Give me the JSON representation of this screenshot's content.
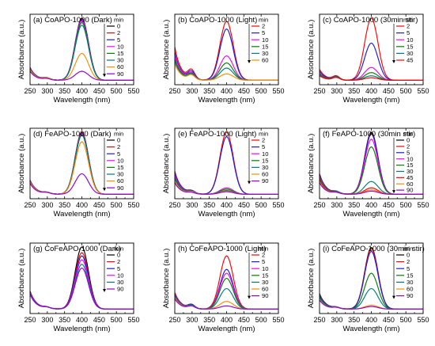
{
  "colors": {
    "0": "#000000",
    "2": "#ff0000",
    "5": "#1c1cdc",
    "10": "#ff00ff",
    "15": "#008000",
    "30": "#007c80",
    "45": "#ff0000",
    "60": "#ff8c00",
    "90": "#9400d3"
  },
  "chart_data": [
    {
      "type": "line",
      "title": "(a) CoAPO-1000 (Dark)",
      "xlabel": "Wavelength (nm)",
      "ylabel": "Absorbance (a.u.)",
      "xlim": [
        250,
        550
      ],
      "xticks": [
        250,
        300,
        350,
        400,
        450,
        500,
        550
      ],
      "legend_title": "min",
      "series": [
        {
          "name": "0",
          "peak": 0.97,
          "bump": 0.03,
          "edge": 0.2
        },
        {
          "name": "2",
          "peak": 0.96,
          "bump": 0.03,
          "edge": 0.2
        },
        {
          "name": "5",
          "peak": 0.95,
          "bump": 0.03,
          "edge": 0.19
        },
        {
          "name": "10",
          "peak": 0.93,
          "bump": 0.03,
          "edge": 0.19
        },
        {
          "name": "15",
          "peak": 0.9,
          "bump": 0.03,
          "edge": 0.18
        },
        {
          "name": "30",
          "peak": 0.86,
          "bump": 0.03,
          "edge": 0.17
        },
        {
          "name": "60",
          "peak": 0.42,
          "bump": 0.03,
          "edge": 0.16
        },
        {
          "name": "90",
          "peak": 0.14,
          "bump": 0.02,
          "edge": 0.14
        }
      ]
    },
    {
      "type": "line",
      "title": "(b) CoAPO-1000 (Light)",
      "xlabel": "Wavelength (nm)",
      "ylabel": "Absorbance (a.u.)",
      "xlim": [
        250,
        550
      ],
      "xticks": [
        250,
        300,
        350,
        400,
        450,
        500,
        550
      ],
      "legend_title": "min",
      "series": [
        {
          "name": "2",
          "peak": 0.92,
          "bump": 0.14,
          "edge": 0.52
        },
        {
          "name": "5",
          "peak": 0.8,
          "bump": 0.12,
          "edge": 0.44
        },
        {
          "name": "10",
          "peak": 0.38,
          "bump": 0.1,
          "edge": 0.4
        },
        {
          "name": "15",
          "peak": 0.27,
          "bump": 0.09,
          "edge": 0.34
        },
        {
          "name": "30",
          "peak": 0.19,
          "bump": 0.08,
          "edge": 0.3
        },
        {
          "name": "60",
          "peak": 0.1,
          "bump": 0.07,
          "edge": 0.26
        }
      ]
    },
    {
      "type": "line",
      "title": "(c) CoAPO-1000 (30min stir)",
      "xlabel": "Wavelength (nm)",
      "ylabel": "Absorbance (a.u.)",
      "xlim": [
        250,
        550
      ],
      "xticks": [
        250,
        300,
        350,
        400,
        450,
        500,
        550
      ],
      "legend_title": "min",
      "series": [
        {
          "name": "2",
          "peak": 0.97,
          "bump": 0.06,
          "edge": 0.17
        },
        {
          "name": "5",
          "peak": 0.58,
          "bump": 0.05,
          "edge": 0.14
        },
        {
          "name": "10",
          "peak": 0.2,
          "bump": 0.05,
          "edge": 0.11
        },
        {
          "name": "15",
          "peak": 0.12,
          "bump": 0.05,
          "edge": 0.1
        },
        {
          "name": "30",
          "peak": 0.07,
          "bump": 0.05,
          "edge": 0.08
        },
        {
          "name": "45",
          "peak": 0.04,
          "bump": 0.04,
          "edge": 0.07
        }
      ]
    },
    {
      "type": "line",
      "title": "(d) FeAPO-1000 (Dark)",
      "xlabel": "Wavelength (nm)",
      "ylabel": "Absorbance (a.u.)",
      "xlim": [
        250,
        550
      ],
      "xticks": [
        250,
        300,
        350,
        400,
        450,
        500,
        550
      ],
      "legend_title": "min",
      "series": [
        {
          "name": "0",
          "peak": 0.97,
          "bump": 0.02,
          "edge": 0.22
        },
        {
          "name": "2",
          "peak": 0.96,
          "bump": 0.02,
          "edge": 0.22
        },
        {
          "name": "5",
          "peak": 0.95,
          "bump": 0.02,
          "edge": 0.21
        },
        {
          "name": "10",
          "peak": 0.94,
          "bump": 0.02,
          "edge": 0.21
        },
        {
          "name": "15",
          "peak": 0.93,
          "bump": 0.02,
          "edge": 0.2
        },
        {
          "name": "30",
          "peak": 0.92,
          "bump": 0.02,
          "edge": 0.2
        },
        {
          "name": "60",
          "peak": 0.82,
          "bump": 0.02,
          "edge": 0.19
        },
        {
          "name": "90",
          "peak": 0.32,
          "bump": 0.02,
          "edge": 0.17
        }
      ]
    },
    {
      "type": "line",
      "title": "(e) FeAPO-1000 (Light)",
      "xlabel": "Wavelength (nm)",
      "ylabel": "Absorbance (a.u.)",
      "xlim": [
        250,
        550
      ],
      "xticks": [
        250,
        300,
        350,
        400,
        450,
        500,
        550
      ],
      "legend_title": "min",
      "series": [
        {
          "name": "2",
          "peak": 0.97,
          "bump": 0.04,
          "edge": 0.36
        },
        {
          "name": "5",
          "peak": 0.9,
          "bump": 0.04,
          "edge": 0.34
        },
        {
          "name": "10",
          "peak": 0.1,
          "bump": 0.03,
          "edge": 0.3
        },
        {
          "name": "15",
          "peak": 0.08,
          "bump": 0.03,
          "edge": 0.27
        },
        {
          "name": "30",
          "peak": 0.06,
          "bump": 0.03,
          "edge": 0.24
        },
        {
          "name": "60",
          "peak": 0.05,
          "bump": 0.03,
          "edge": 0.21
        },
        {
          "name": "90",
          "peak": 0.04,
          "bump": 0.02,
          "edge": 0.18
        }
      ]
    },
    {
      "type": "line",
      "title": "(f) FeAPO-1000 (30min stir)",
      "xlabel": "Wavelength (nm)",
      "ylabel": "Absorbance (a.u.)",
      "xlim": [
        250,
        550
      ],
      "xticks": [
        250,
        300,
        350,
        400,
        450,
        500,
        550
      ],
      "legend_title": "min",
      "series": [
        {
          "name": "0",
          "peak": 0.97,
          "bump": 0.03,
          "edge": 0.32
        },
        {
          "name": "2",
          "peak": 0.95,
          "bump": 0.03,
          "edge": 0.3
        },
        {
          "name": "5",
          "peak": 0.94,
          "bump": 0.03,
          "edge": 0.29
        },
        {
          "name": "10",
          "peak": 0.86,
          "bump": 0.03,
          "edge": 0.28
        },
        {
          "name": "15",
          "peak": 0.74,
          "bump": 0.03,
          "edge": 0.26
        },
        {
          "name": "30",
          "peak": 0.2,
          "bump": 0.03,
          "edge": 0.24
        },
        {
          "name": "45",
          "peak": 0.1,
          "bump": 0.02,
          "edge": 0.22
        },
        {
          "name": "60",
          "peak": 0.07,
          "bump": 0.02,
          "edge": 0.2
        },
        {
          "name": "90",
          "peak": 0.05,
          "bump": 0.02,
          "edge": 0.18
        }
      ]
    },
    {
      "type": "line",
      "title": "(g) CoFeAPO-1000 (Dark)",
      "xlabel": "Wavelength (nm)",
      "ylabel": "Absorbance (a.u.)",
      "xlim": [
        250,
        550
      ],
      "xticks": [
        250,
        300,
        350,
        400,
        450,
        500,
        550
      ],
      "legend_title": "min",
      "series": [
        {
          "name": "0",
          "peak": 0.97,
          "bump": 0.02,
          "edge": 0.28
        },
        {
          "name": "2",
          "peak": 0.88,
          "bump": 0.02,
          "edge": 0.27
        },
        {
          "name": "5",
          "peak": 0.83,
          "bump": 0.02,
          "edge": 0.26
        },
        {
          "name": "10",
          "peak": 0.77,
          "bump": 0.02,
          "edge": 0.25
        },
        {
          "name": "30",
          "peak": 0.7,
          "bump": 0.02,
          "edge": 0.24
        },
        {
          "name": "90",
          "peak": 0.64,
          "bump": 0.02,
          "edge": 0.23
        }
      ]
    },
    {
      "type": "line",
      "title": "(h) CoFeAPO-1000 (Light)",
      "xlabel": "Wavelength (nm)",
      "ylabel": "Absorbance (a.u.)",
      "xlim": [
        250,
        550
      ],
      "xticks": [
        250,
        300,
        350,
        400,
        450,
        500,
        550
      ],
      "legend_title": "min",
      "series": [
        {
          "name": "2",
          "peak": 0.83,
          "bump": 0.06,
          "edge": 0.26
        },
        {
          "name": "5",
          "peak": 0.62,
          "bump": 0.06,
          "edge": 0.24
        },
        {
          "name": "10",
          "peak": 0.56,
          "bump": 0.05,
          "edge": 0.22
        },
        {
          "name": "15",
          "peak": 0.48,
          "bump": 0.05,
          "edge": 0.21
        },
        {
          "name": "30",
          "peak": 0.32,
          "bump": 0.05,
          "edge": 0.2
        },
        {
          "name": "60",
          "peak": 0.12,
          "bump": 0.04,
          "edge": 0.18
        },
        {
          "name": "90",
          "peak": 0.05,
          "bump": 0.04,
          "edge": 0.16
        }
      ]
    },
    {
      "type": "line",
      "title": "(i) CoFeAPO-1000 (30min stir)",
      "xlabel": "Wavelength (nm)",
      "ylabel": "Absorbance (a.u.)",
      "xlim": [
        250,
        550
      ],
      "xticks": [
        250,
        300,
        350,
        400,
        450,
        500,
        550
      ],
      "legend_title": "min",
      "series": [
        {
          "name": "0",
          "peak": 0.96,
          "bump": 0.02,
          "edge": 0.24
        },
        {
          "name": "2",
          "peak": 0.94,
          "bump": 0.02,
          "edge": 0.23
        },
        {
          "name": "5",
          "peak": 0.9,
          "bump": 0.02,
          "edge": 0.22
        },
        {
          "name": "15",
          "peak": 0.56,
          "bump": 0.02,
          "edge": 0.2
        },
        {
          "name": "30",
          "peak": 0.32,
          "bump": 0.02,
          "edge": 0.18
        },
        {
          "name": "60",
          "peak": 0.06,
          "bump": 0.02,
          "edge": 0.15
        },
        {
          "name": "90",
          "peak": 0.04,
          "bump": 0.02,
          "edge": 0.14
        }
      ]
    }
  ]
}
